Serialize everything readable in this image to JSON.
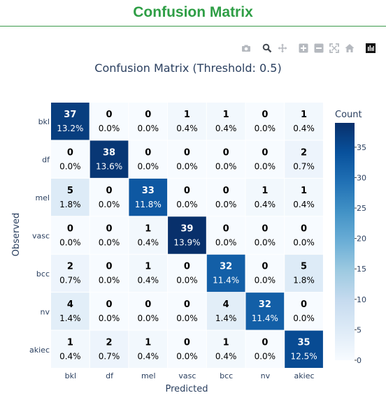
{
  "page": {
    "title": "Confusion Matrix"
  },
  "toolbar": {
    "items": [
      {
        "name": "camera-icon",
        "label": "Download plot as a png"
      },
      {
        "name": "zoom-icon",
        "label": "Zoom"
      },
      {
        "name": "pan-icon",
        "label": "Pan"
      },
      {
        "name": "zoom-in-icon",
        "label": "Zoom in"
      },
      {
        "name": "zoom-out-icon",
        "label": "Zoom out"
      },
      {
        "name": "autoscale-icon",
        "label": "Autoscale"
      },
      {
        "name": "reset-axes-icon",
        "label": "Reset axes"
      },
      {
        "name": "plotly-logo-icon",
        "label": "Produced with Plotly"
      }
    ]
  },
  "chart_data": {
    "type": "heatmap",
    "title": "Confusion Matrix (Threshold: 0.5)",
    "xlabel": "Predicted",
    "ylabel": "Observed",
    "x_categories": [
      "bkl",
      "df",
      "mel",
      "vasc",
      "bcc",
      "nv",
      "akiec"
    ],
    "y_categories": [
      "bkl",
      "df",
      "mel",
      "vasc",
      "bcc",
      "nv",
      "akiec"
    ],
    "values": [
      [
        37,
        0,
        0,
        1,
        1,
        0,
        1
      ],
      [
        0,
        38,
        0,
        0,
        0,
        0,
        2
      ],
      [
        5,
        0,
        33,
        0,
        0,
        1,
        1
      ],
      [
        0,
        0,
        1,
        39,
        0,
        0,
        0
      ],
      [
        2,
        0,
        1,
        0,
        32,
        0,
        5
      ],
      [
        4,
        0,
        0,
        0,
        4,
        32,
        0
      ],
      [
        1,
        2,
        1,
        0,
        1,
        0,
        35
      ]
    ],
    "percent_labels": [
      [
        "13.2%",
        "0.0%",
        "0.0%",
        "0.4%",
        "0.4%",
        "0.0%",
        "0.4%"
      ],
      [
        "0.0%",
        "13.6%",
        "0.0%",
        "0.0%",
        "0.0%",
        "0.0%",
        "0.7%"
      ],
      [
        "1.8%",
        "0.0%",
        "11.8%",
        "0.0%",
        "0.0%",
        "0.4%",
        "0.4%"
      ],
      [
        "0.0%",
        "0.0%",
        "0.4%",
        "13.9%",
        "0.0%",
        "0.0%",
        "0.0%"
      ],
      [
        "0.7%",
        "0.0%",
        "0.4%",
        "0.0%",
        "11.4%",
        "0.0%",
        "1.8%"
      ],
      [
        "1.4%",
        "0.0%",
        "0.0%",
        "0.0%",
        "1.4%",
        "11.4%",
        "0.0%"
      ],
      [
        "0.4%",
        "0.7%",
        "0.4%",
        "0.0%",
        "0.4%",
        "0.0%",
        "12.5%"
      ]
    ],
    "colorbar": {
      "title": "Count",
      "range": [
        0,
        39
      ],
      "ticks": [
        0,
        5,
        10,
        15,
        20,
        25,
        30,
        35
      ]
    },
    "colorscale": [
      "#f7fbff",
      "#deebf7",
      "#c6dbef",
      "#9ecae1",
      "#6baed6",
      "#4292c6",
      "#2171b5",
      "#08519c",
      "#08306b"
    ],
    "text_color_light": "#ffffff",
    "text_color_dark": "#000000",
    "axis_text_color": "#2a3f5f",
    "grid": false
  }
}
